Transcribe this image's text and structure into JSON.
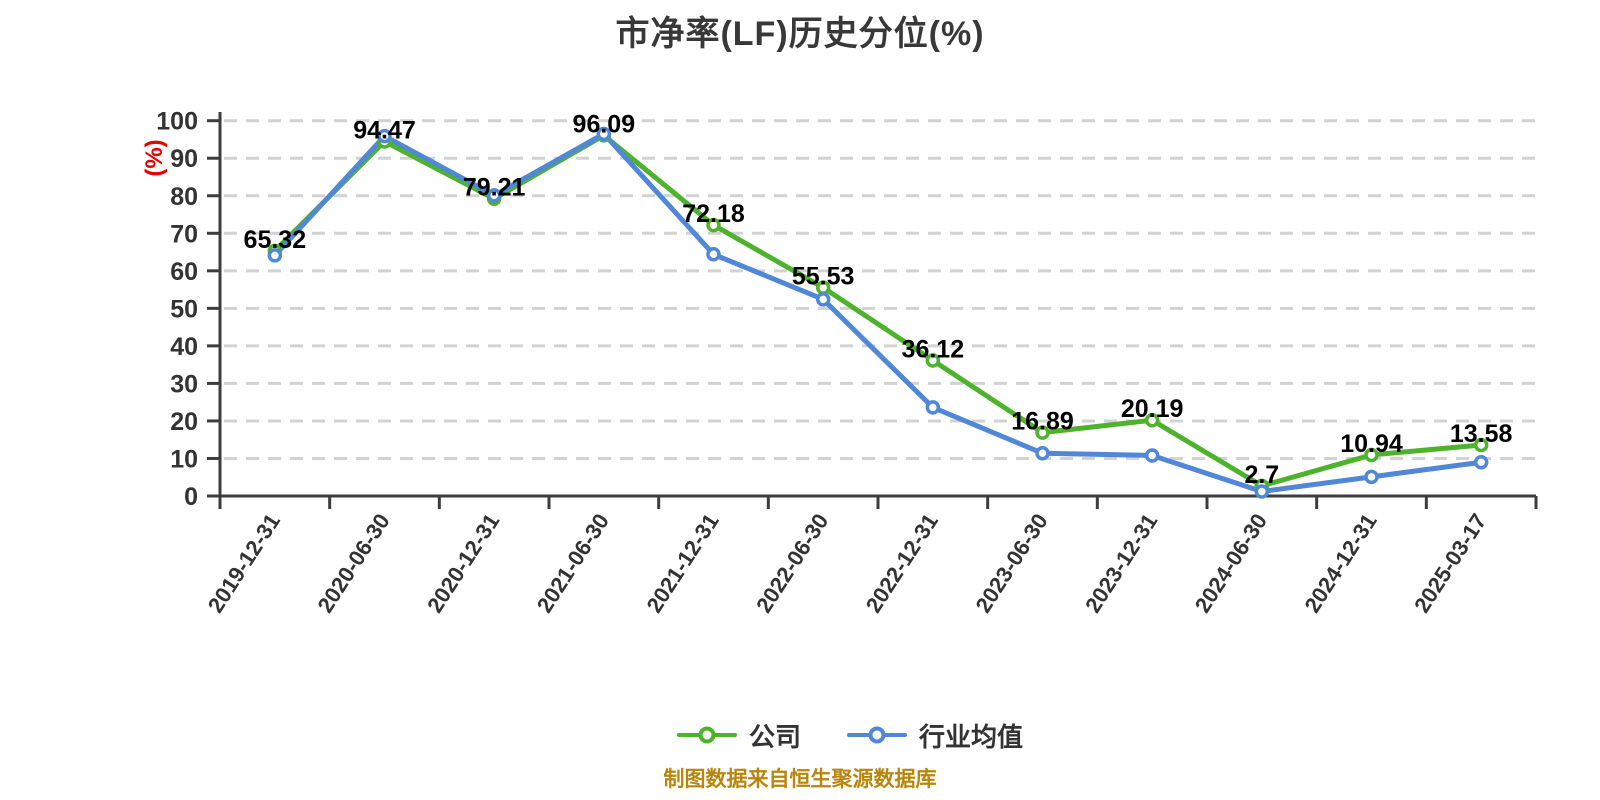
{
  "chart": {
    "title": "市净率(LF)历史分位(%)",
    "y_axis_name": "(%)",
    "source_note": "制图数据来自恒生聚源数据库",
    "legend": [
      {
        "label": "公司",
        "color": "#4eb32c"
      },
      {
        "label": "行业均值",
        "color": "#5087d6"
      }
    ],
    "colors": {
      "title": "#383838",
      "axis": "#3d3d3d",
      "grid": "#d2d2d2",
      "tick_label": "#333333",
      "data_label": "#000000",
      "y_axis_name": "#e60000",
      "source_note": "#b8860b"
    }
  },
  "chart_data": {
    "type": "line",
    "title": "市净率(LF)历史分位(%)",
    "xlabel": "",
    "ylabel": "(%)",
    "ylim": [
      0,
      100
    ],
    "ytick_interval": 10,
    "ytick_labels": [
      "0",
      "10",
      "20",
      "30",
      "40",
      "50",
      "60",
      "70",
      "80",
      "90",
      "100"
    ],
    "grid": "horizontal-dashed",
    "legend_position": "bottom",
    "categories": [
      "2019-12-31",
      "2020-06-30",
      "2020-12-31",
      "2021-06-30",
      "2021-12-31",
      "2022-06-30",
      "2022-12-31",
      "2023-06-30",
      "2023-12-31",
      "2024-06-30",
      "2024-12-31",
      "2025-03-17"
    ],
    "series": [
      {
        "name": "公司",
        "color": "#4eb32c",
        "values": [
          65.32,
          94.47,
          79.21,
          96.09,
          72.18,
          55.53,
          36.12,
          16.89,
          20.19,
          2.7,
          10.94,
          13.58
        ],
        "data_labels": [
          "65.32",
          "94.47",
          "79.21",
          "96.09",
          "72.18",
          "55.53",
          "36.12",
          "16.89",
          "20.19",
          "2.7",
          "10.94",
          "13.58"
        ]
      },
      {
        "name": "行业均值",
        "color": "#5087d6",
        "estimated": true,
        "values": [
          64.1,
          95.9,
          80.1,
          96.5,
          64.4,
          52.4,
          23.6,
          11.4,
          10.8,
          1.2,
          5.1,
          9.0
        ]
      }
    ]
  }
}
